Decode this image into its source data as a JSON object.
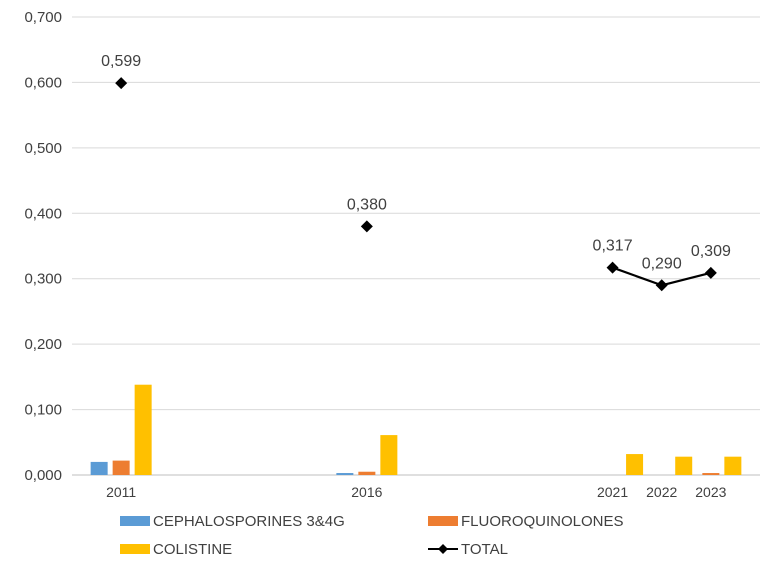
{
  "chart_data": {
    "type": "bar",
    "categories": [
      "2011",
      "2016",
      "2021",
      "2022",
      "2023"
    ],
    "x_positions": [
      2011,
      2016,
      2021,
      2022,
      2023
    ],
    "ylim": [
      0,
      0.7
    ],
    "yticks": [
      "0,000",
      "0,100",
      "0,200",
      "0,300",
      "0,400",
      "0,500",
      "0,600",
      "0,700"
    ],
    "grid": true,
    "legend_position": "bottom",
    "series": [
      {
        "name": "CEPHALOSPORINES 3&4G",
        "kind": "bar",
        "color": "#5B9BD5",
        "values": [
          0.02,
          0.003,
          0.0,
          0.0,
          0.0
        ]
      },
      {
        "name": "FLUOROQUINOLONES",
        "kind": "bar",
        "color": "#ED7D31",
        "values": [
          0.022,
          0.005,
          0.0,
          0.0,
          0.003
        ]
      },
      {
        "name": "COLISTINE",
        "kind": "bar",
        "color": "#FFC000",
        "values": [
          0.138,
          0.061,
          0.032,
          0.028,
          0.028
        ]
      },
      {
        "name": "TOTAL",
        "kind": "line",
        "color": "#000000",
        "values": [
          0.599,
          0.38,
          0.317,
          0.29,
          0.309
        ],
        "labels": [
          "0,599",
          "0,380",
          "0,317",
          "0,290",
          "0,309"
        ]
      }
    ]
  }
}
